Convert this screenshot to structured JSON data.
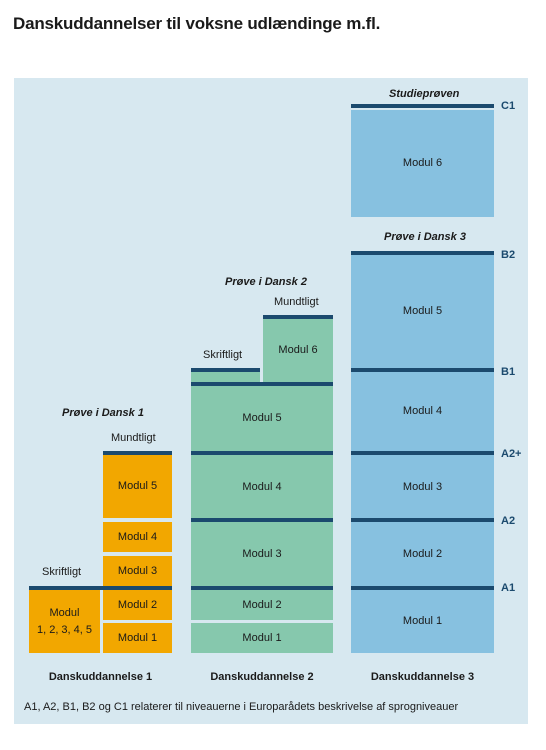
{
  "title": "Danskuddannelser til voksne udlændinge m.fl.",
  "col1": {
    "heading": "Danskuddannelse 1",
    "exam": "Prøve i Dansk 1",
    "written": "Skriftligt",
    "oral": "Mundtligt",
    "modules_combined": "Modul\n1, 2, 3, 4, 5",
    "modules": [
      "Modul 1",
      "Modul 2",
      "Modul 3",
      "Modul 4",
      "Modul 5"
    ]
  },
  "col2": {
    "heading": "Danskuddannelse 2",
    "exam": "Prøve i Dansk 2",
    "written": "Skriftligt",
    "oral": "Mundtligt",
    "modules": [
      "Modul 1",
      "Modul 2",
      "Modul 3",
      "Modul 4",
      "Modul 5",
      "Modul 6"
    ]
  },
  "col3": {
    "heading": "Danskuddannelse 3",
    "exam": "Prøve i Dansk 3",
    "exam_top": "Studieprøven",
    "modules": [
      "Modul 1",
      "Modul 2",
      "Modul 3",
      "Modul 4",
      "Modul 5",
      "Modul 6"
    ]
  },
  "levels": [
    "A1",
    "A2",
    "A2+",
    "B1",
    "B2",
    "C1"
  ],
  "footnote": "A1, A2, B1, B2 og C1 relaterer til niveauerne i Europarådets beskrivelse af sprogniveauer",
  "colors": {
    "orange": "#f2a700",
    "green": "#86c8ad",
    "blue": "#87c1e0",
    "bar": "#1b4a6e",
    "panel": "#d7e8f0"
  }
}
